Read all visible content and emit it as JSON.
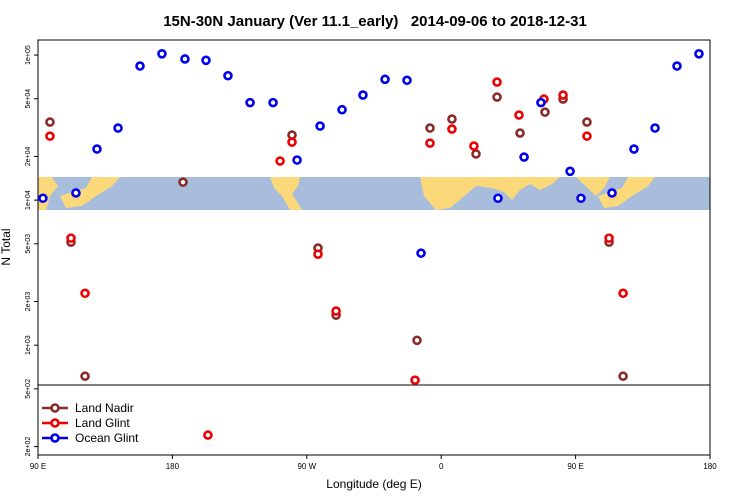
{
  "chart_data": {
    "type": "scatter",
    "title": "15N-30N January (Ver 11.1_early)   2014-09-06 to 2018-12-31",
    "x_label": "Longitude (deg E)",
    "y_label": "N Total",
    "log_y": true,
    "legend": "bottom-left",
    "xlim": [
      90,
      540
    ],
    "ylim": [
      175,
      127000
    ],
    "xticks": [
      {
        "value": 90,
        "label": "90 E"
      },
      {
        "value": 180,
        "label": "180"
      },
      {
        "value": 270,
        "label": "90 W"
      },
      {
        "value": 360,
        "label": "0"
      },
      {
        "value": 450,
        "label": "90 E"
      },
      {
        "value": 540,
        "label": "180"
      }
    ],
    "yticks": [
      {
        "value": 200,
        "label": "2e+02"
      },
      {
        "value": 500,
        "label": "5e+02"
      },
      {
        "value": 1000,
        "label": "1e+03"
      },
      {
        "value": 2000,
        "label": "2e+03"
      },
      {
        "value": 5000,
        "label": "5e+03"
      },
      {
        "value": 10000,
        "label": "1e+04"
      },
      {
        "value": 20000,
        "label": "2e+04"
      },
      {
        "value": 50000,
        "label": "5e+04"
      },
      {
        "value": 100000,
        "label": "1e+05"
      }
    ],
    "series": [
      {
        "name": "Land Nadir",
        "color": "#8b2a2a",
        "x": [
          98.0,
          112.1,
          121.5,
          187.1,
          260.1,
          277.5,
          289.6,
          343.8,
          352.5,
          367.2,
          383.3,
          397.4,
          412.8,
          429.5,
          441.6,
          457.6,
          472.4,
          481.8
        ],
        "values": [
          34500,
          5130,
          611,
          13300,
          28100,
          4670,
          1610,
          1080,
          31400,
          36200,
          20800,
          51300,
          29000,
          40400,
          49700,
          34500,
          5130,
          611
        ]
      },
      {
        "name": "Land Glint",
        "color": "#ee0000",
        "x": [
          98.0,
          112.1,
          121.5,
          203.8,
          252.1,
          260.1,
          277.5,
          289.6,
          342.5,
          352.5,
          367.2,
          381.9,
          397.4,
          412.1,
          428.8,
          441.6,
          457.6,
          472.4,
          481.8
        ],
        "values": [
          27600,
          5470,
          2280,
          240,
          18600,
          25100,
          4240,
          1720,
          574,
          24700,
          30900,
          23600,
          65100,
          38600,
          49700,
          53000,
          27600,
          5470,
          2280
        ]
      },
      {
        "name": "Ocean Glint",
        "color": "#0000ee",
        "x": [
          93.3,
          115.4,
          129.5,
          143.6,
          158.3,
          173.0,
          188.4,
          202.5,
          217.2,
          232.0,
          247.4,
          263.5,
          278.9,
          293.6,
          307.6,
          322.4,
          337.1,
          346.5,
          398.0,
          415.5,
          426.8,
          446.3,
          453.6,
          474.4,
          489.1,
          503.2,
          517.9,
          532.6
        ],
        "values": [
          10300,
          11200,
          22500,
          31400,
          84000,
          102000,
          94000,
          92000,
          72000,
          47000,
          47000,
          18900,
          32400,
          42000,
          53000,
          68000,
          67000,
          4310,
          10300,
          19800,
          47000,
          15800,
          10300,
          11200,
          22500,
          31400,
          84000,
          102000
        ]
      }
    ]
  }
}
